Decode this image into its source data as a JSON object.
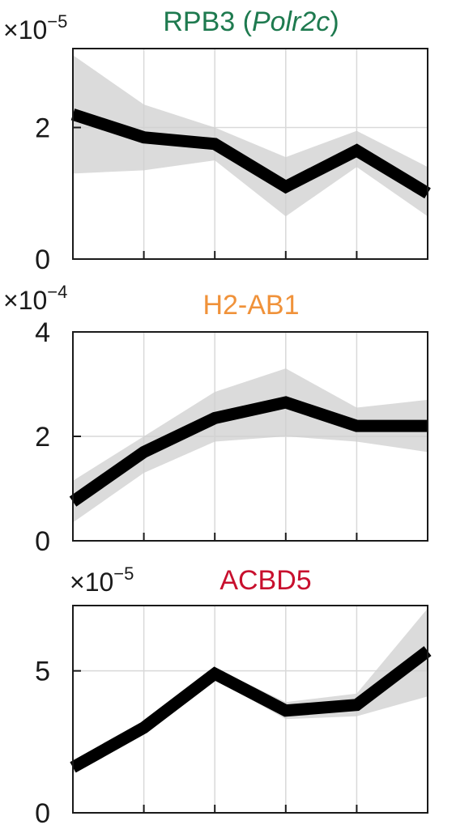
{
  "chart_data": [
    {
      "type": "line",
      "title_main": "RPB3 (",
      "title_italic": "Polr2c",
      "title_end": ")",
      "title_color": "#1e7a4f",
      "exponent_label": "×10",
      "exponent_power": "−5",
      "x": [
        1,
        2,
        3,
        4,
        5,
        6
      ],
      "xlim": [
        1,
        6
      ],
      "ylim": [
        0,
        3.2
      ],
      "yticks": [
        0,
        2
      ],
      "ytick_labels": [
        "0",
        "2"
      ],
      "series": [
        {
          "values": [
            2.2,
            1.85,
            1.75,
            1.1,
            1.65,
            1.0
          ],
          "band_low": [
            1.3,
            1.35,
            1.5,
            0.65,
            1.4,
            0.65
          ],
          "band_high": [
            3.1,
            2.35,
            2.0,
            1.55,
            1.95,
            1.4
          ]
        }
      ],
      "grid": true
    },
    {
      "type": "line",
      "title_main": "H2-AB1",
      "title_italic": "",
      "title_end": "",
      "title_color": "#f0923a",
      "exponent_label": "×10",
      "exponent_power": "−4",
      "x": [
        1,
        2,
        3,
        4,
        5,
        6
      ],
      "xlim": [
        1,
        6
      ],
      "ylim": [
        0,
        4
      ],
      "yticks": [
        0,
        2,
        4
      ],
      "ytick_labels": [
        "0",
        "2",
        "4"
      ],
      "series": [
        {
          "values": [
            0.75,
            1.7,
            2.35,
            2.65,
            2.2,
            2.2
          ],
          "band_low": [
            0.35,
            1.3,
            1.9,
            2.0,
            1.9,
            1.7
          ],
          "band_high": [
            1.15,
            2.0,
            2.85,
            3.3,
            2.55,
            2.7
          ]
        }
      ],
      "grid": true
    },
    {
      "type": "line",
      "title_main": "ACBD5",
      "title_italic": "",
      "title_end": "",
      "title_color": "#c8102e",
      "exponent_label": "×10",
      "exponent_power": "−5",
      "x": [
        1,
        2,
        3,
        4,
        5,
        6
      ],
      "xlim": [
        1,
        6
      ],
      "ylim": [
        0,
        7.3
      ],
      "yticks": [
        0,
        5
      ],
      "ytick_labels": [
        "0",
        "5"
      ],
      "series": [
        {
          "values": [
            1.6,
            3.0,
            4.9,
            3.6,
            3.8,
            5.7
          ],
          "band_low": [
            1.4,
            2.8,
            4.7,
            3.3,
            3.4,
            4.1
          ],
          "band_high": [
            1.8,
            3.2,
            5.1,
            3.9,
            4.2,
            7.2
          ]
        }
      ],
      "grid": true
    }
  ]
}
